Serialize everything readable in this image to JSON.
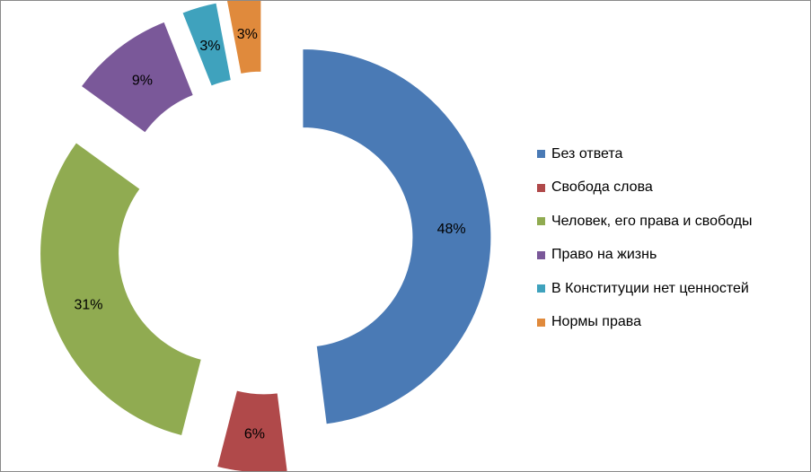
{
  "chart_data": {
    "type": "pie",
    "variant": "exploded-donut",
    "categories": [
      "Без ответа",
      "Свобода слова",
      "Человек, его права и свободы",
      "Право на жизнь",
      "В Конституции нет ценностей",
      "Нормы права"
    ],
    "values": [
      48,
      6,
      31,
      9,
      3,
      3
    ],
    "labels": [
      "48%",
      "6%",
      "31%",
      "9%",
      "3%",
      "3%"
    ],
    "colors": [
      "#4a7ab5",
      "#b0494a",
      "#90ab51",
      "#7a5899",
      "#3fa2bd",
      "#e08a3c"
    ],
    "legend_position": "right"
  }
}
